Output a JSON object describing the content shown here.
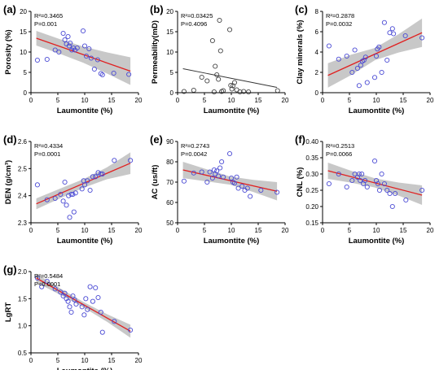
{
  "chart_data": [
    {
      "panel": "(a)",
      "type": "scatter",
      "xlabel": "Laumontite (%)",
      "ylabel": "Porosity (%)",
      "xlim": [
        0,
        20
      ],
      "xticks": [
        0,
        5,
        10,
        15,
        20
      ],
      "ylim": [
        0,
        20
      ],
      "yticks": [
        0,
        5,
        10,
        15,
        20
      ],
      "stats": [
        "R²=0.3465",
        "P=0.001"
      ],
      "x": [
        1.2,
        3,
        4.5,
        5.2,
        6,
        6.3,
        6.6,
        6.9,
        7.1,
        7.3,
        7.6,
        7.9,
        8.2,
        8.6,
        9.7,
        10,
        10.3,
        10.8,
        11.2,
        11.8,
        12.4,
        13,
        13.3,
        15.4,
        18.2
      ],
      "y": [
        8,
        8.2,
        10.5,
        10,
        14.6,
        13,
        12,
        13.8,
        11.5,
        12.2,
        10.5,
        11,
        10.5,
        11,
        15.2,
        11.5,
        9,
        10.8,
        8.5,
        5.8,
        8.1,
        4.7,
        4.4,
        4.8,
        4.5
      ],
      "fit": {
        "x1": 1,
        "y1": 13.4,
        "x2": 18.5,
        "y2": 5.3
      },
      "band_width": [
        1.8,
        1.8,
        2.0,
        2.6,
        3.4
      ]
    },
    {
      "panel": "(b)",
      "type": "scatter",
      "xlabel": "Laumontite (%)",
      "ylabel": "Permeability(mD)",
      "xlim": [
        0,
        20
      ],
      "xticks": [
        0,
        5,
        10,
        15,
        20
      ],
      "ylim": [
        0,
        20
      ],
      "yticks": [
        0,
        5,
        10,
        15,
        20
      ],
      "stats": [
        "R²=0.03425",
        "P=0.4096"
      ],
      "x": [
        1.2,
        3,
        4.5,
        5.5,
        6.5,
        6.8,
        7,
        7.3,
        7.6,
        7.8,
        8,
        8.2,
        8.5,
        9.7,
        9.9,
        10.1,
        10.3,
        10.6,
        11,
        11.6,
        12.3,
        13.2,
        18.6
      ],
      "y": [
        0.3,
        0.6,
        3.8,
        2.9,
        12.8,
        0.2,
        6.5,
        4.4,
        3.3,
        17.8,
        10.3,
        0.3,
        0.5,
        15.5,
        1.8,
        0.9,
        1.7,
        2.5,
        0.7,
        0.2,
        0.3,
        0.2,
        0.5
      ],
      "fit": {
        "x1": 1,
        "y1": 5.9,
        "x2": 18.5,
        "y2": 1.3
      },
      "band_width": []
    },
    {
      "panel": "(c)",
      "type": "scatter",
      "xlabel": "Laumontite (%)",
      "ylabel": "Clay minerals (%)",
      "xlim": [
        0,
        20
      ],
      "xticks": [
        0,
        5,
        10,
        15,
        20
      ],
      "ylim": [
        0,
        8
      ],
      "yticks": [
        0,
        2,
        4,
        6,
        8
      ],
      "stats": [
        "R²=0.2878",
        "P=0.0032"
      ],
      "x": [
        1.2,
        3,
        4.5,
        5.5,
        6,
        6.5,
        6.8,
        7.1,
        7.4,
        7.7,
        8,
        8.3,
        9.7,
        10,
        10.2,
        10.5,
        11,
        11.5,
        12,
        12.5,
        13,
        13.2,
        15.4,
        18.5
      ],
      "y": [
        4.6,
        3.3,
        3.6,
        2,
        4.2,
        2.4,
        0.7,
        2.7,
        3.1,
        3.2,
        3.5,
        1,
        1.5,
        3.6,
        4.3,
        4.5,
        2,
        6.9,
        3.2,
        5.9,
        6.3,
        5.8,
        5.6,
        5.4
      ],
      "fit": {
        "x1": 1,
        "y1": 1.7,
        "x2": 18.5,
        "y2": 5.9
      },
      "band_width": [
        1.2,
        1.0,
        0.6,
        0.9,
        1.4
      ]
    },
    {
      "panel": "(d)",
      "type": "scatter",
      "xlabel": "Laumontite (%)",
      "ylabel": "DEN (g/cm³)",
      "xlim": [
        0,
        20
      ],
      "xticks": [
        0,
        5,
        10,
        15,
        20
      ],
      "ylim": [
        2.3,
        2.6
      ],
      "yticks": [
        2.3,
        2.4,
        2.5,
        2.6
      ],
      "stats": [
        "R²=0.4334",
        "P=0.0001"
      ],
      "x": [
        1.2,
        3,
        4.5,
        5.5,
        6,
        6.3,
        6.6,
        7,
        7.2,
        7.5,
        7.8,
        8,
        8.3,
        9.5,
        9.8,
        10,
        10.5,
        11,
        11.5,
        12,
        12.5,
        13,
        13.3,
        15.5,
        18.5
      ],
      "y": [
        2.44,
        2.385,
        2.39,
        2.405,
        2.38,
        2.45,
        2.365,
        2.4,
        2.32,
        2.405,
        2.405,
        2.34,
        2.41,
        2.425,
        2.455,
        2.44,
        2.455,
        2.42,
        2.47,
        2.47,
        2.485,
        2.48,
        2.48,
        2.53,
        2.53
      ],
      "fit": {
        "x1": 1,
        "y1": 2.37,
        "x2": 18.5,
        "y2": 2.52
      },
      "band_width": [
        0.02,
        0.018,
        0.016,
        0.022,
        0.04
      ]
    },
    {
      "panel": "(e)",
      "type": "scatter",
      "xlabel": "Laumontite (%)",
      "ylabel": "AC (us/ft)",
      "xlim": [
        0,
        20
      ],
      "xticks": [
        0,
        5,
        10,
        15,
        20
      ],
      "ylim": [
        50,
        90
      ],
      "yticks": [
        50,
        60,
        70,
        80,
        90
      ],
      "stats": [
        "R²=0.2743",
        "P=0.0042"
      ],
      "x": [
        1.2,
        3,
        4.5,
        5.5,
        6,
        6.5,
        6.8,
        7,
        7.3,
        7.6,
        7.9,
        8.2,
        8.5,
        9.7,
        10,
        10.3,
        10.6,
        11,
        11.3,
        12,
        12.5,
        13,
        13.5,
        15.5,
        18.5
      ],
      "y": [
        70.5,
        74.5,
        75,
        70,
        75,
        72,
        76,
        74,
        75.5,
        73,
        77,
        80,
        72.5,
        84,
        72,
        70,
        69.5,
        72.5,
        67,
        68,
        66,
        67,
        63,
        66,
        65
      ],
      "fit": {
        "x1": 1,
        "y1": 76,
        "x2": 18.5,
        "y2": 65.5
      },
      "band_width": [
        4,
        3,
        2,
        3,
        4.5
      ]
    },
    {
      "panel": "(f)",
      "type": "scatter",
      "xlabel": "Laumontite (%)",
      "ylabel": "CNL (%)",
      "xlim": [
        0,
        20
      ],
      "xticks": [
        0,
        5,
        10,
        15,
        20
      ],
      "ylim": [
        0.15,
        0.4
      ],
      "yticks": [
        0.15,
        0.2,
        0.25,
        0.3,
        0.35,
        0.4
      ],
      "stats": [
        "R²=0.2513",
        "P=0.0066"
      ],
      "x": [
        1.2,
        3,
        4.5,
        5.5,
        6,
        6.5,
        6.8,
        7,
        7.3,
        7.6,
        7.9,
        8.3,
        9.7,
        10,
        10.3,
        10.6,
        11,
        11.5,
        12,
        12.5,
        13,
        13.5,
        15.5,
        18.5
      ],
      "y": [
        0.27,
        0.3,
        0.26,
        0.28,
        0.3,
        0.29,
        0.3,
        0.28,
        0.3,
        0.27,
        0.28,
        0.26,
        0.34,
        0.28,
        0.27,
        0.25,
        0.3,
        0.27,
        0.25,
        0.24,
        0.2,
        0.24,
        0.22,
        0.25
      ],
      "fit": {
        "x1": 1,
        "y1": 0.31,
        "x2": 18.5,
        "y2": 0.235
      },
      "band_width": [
        0.025,
        0.018,
        0.014,
        0.02,
        0.03
      ]
    },
    {
      "panel": "(g)",
      "type": "scatter",
      "xlabel": "Laumontite (%)",
      "ylabel": "LgRT",
      "xlim": [
        0,
        20
      ],
      "xticks": [
        0,
        5,
        10,
        15,
        20
      ],
      "ylim": [
        0.5,
        2.0
      ],
      "yticks": [
        0.5,
        1.0,
        1.5,
        2.0
      ],
      "stats": [
        "R²=0.5484",
        "P<0.0001"
      ],
      "x": [
        1.2,
        2,
        3,
        4.5,
        5.5,
        6,
        6.3,
        6.6,
        6.9,
        7.2,
        7.5,
        7.8,
        8.1,
        8.4,
        9.5,
        9.9,
        10.2,
        10.5,
        11,
        11.5,
        12,
        12.5,
        13,
        13.3,
        15.5,
        18.5
      ],
      "y": [
        1.88,
        1.72,
        1.82,
        1.68,
        1.62,
        1.55,
        1.6,
        1.5,
        1.45,
        1.35,
        1.25,
        1.55,
        1.48,
        1.4,
        1.35,
        1.2,
        1.5,
        1.3,
        1.72,
        1.45,
        1.7,
        1.52,
        1.25,
        0.88,
        1.08,
        0.92
      ],
      "fit": {
        "x1": 1,
        "y1": 1.88,
        "x2": 18.5,
        "y2": 0.9
      },
      "band_width": [
        0.08,
        0.06,
        0.05,
        0.07,
        0.12
      ]
    }
  ],
  "colors": {
    "point": "#4a4ad4",
    "fit_significant": "#e02020",
    "fit_insignificant": "#333333",
    "band": "#c8c8c8"
  }
}
